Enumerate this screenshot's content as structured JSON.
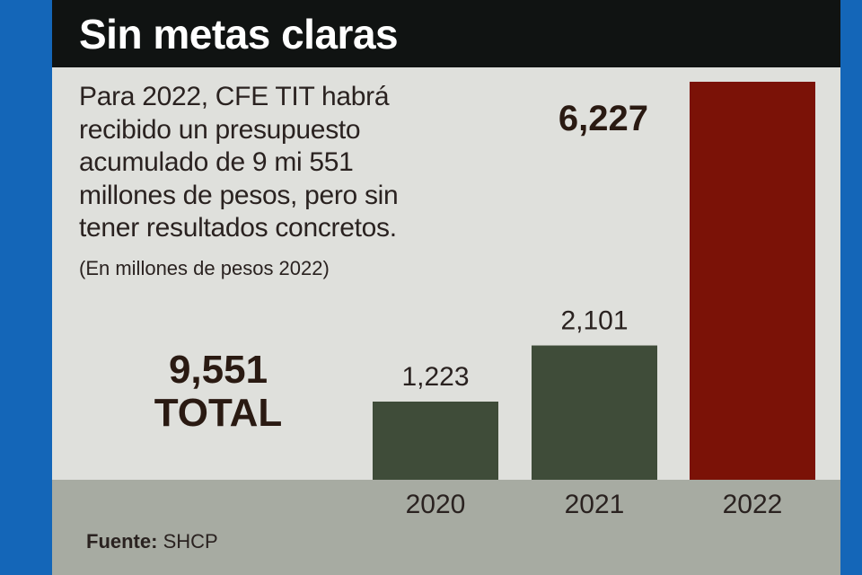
{
  "header": {
    "title": "Sin metas claras"
  },
  "description": "Para 2022, CFE TIT habrá recibido un presupuesto acumulado de 9 mi 551 millones de pesos, pero sin tener resultados concretos.",
  "units_note": "(En millones de pesos 2022)",
  "total": {
    "value": "9,551",
    "label": "TOTAL"
  },
  "source": {
    "label": "Fuente:",
    "value": "SHCP"
  },
  "colors": {
    "header_bg": "#101312",
    "panel_bg": "#dfe0dc",
    "footer_bg": "#a7aba2",
    "bar_green": "#3f4c39",
    "bar_red": "#7b1207",
    "frame_blue": "#1466b8"
  },
  "chart_data": {
    "type": "bar",
    "categories": [
      "2020",
      "2021",
      "2022"
    ],
    "values": [
      1223,
      2101,
      6227
    ],
    "value_labels": [
      "1,223",
      "2,101",
      "6,227"
    ],
    "bar_colors": [
      "#3f4c39",
      "#3f4c39",
      "#7b1207"
    ],
    "title": "Sin metas claras",
    "xlabel": "",
    "ylabel": "",
    "ylim": [
      0,
      6227
    ],
    "grid": false,
    "legend": "none"
  }
}
